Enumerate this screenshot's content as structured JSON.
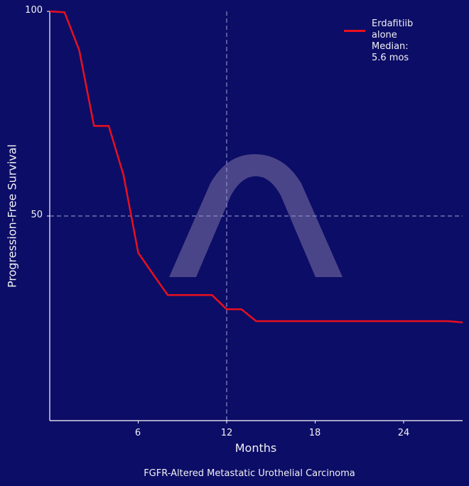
{
  "chart_data": {
    "type": "line",
    "title": "",
    "caption": "FGFR-Altered Metastatic Urothelial Carcinoma",
    "xlabel": "Months",
    "ylabel": "Progression-Free Survival",
    "xlim": [
      0,
      28
    ],
    "ylim": [
      0,
      100
    ],
    "x_ticks": [
      6,
      12,
      18,
      24
    ],
    "y_ticks": [
      50,
      100
    ],
    "grid": false,
    "reference_lines": [
      {
        "orientation": "vertical",
        "value": 12,
        "style": "dashed"
      },
      {
        "orientation": "horizontal",
        "value": 50,
        "style": "dashed"
      }
    ],
    "legend_position": "upper right",
    "series": [
      {
        "name": "Erdafitiib alone",
        "annotation": "Median: 5.6 mos",
        "color": "#e8101e",
        "x": [
          0,
          1,
          2,
          3,
          4,
          5,
          6,
          7,
          8,
          11,
          12,
          13,
          14,
          27,
          28
        ],
        "values": [
          100,
          99.8,
          90.5,
          72,
          72,
          60,
          41,
          35.8,
          30.7,
          30.7,
          27.2,
          27.2,
          24.3,
          24.3,
          24.0
        ]
      }
    ]
  },
  "legend": {
    "line1": "Erdafitiib alone",
    "line2": "Median: 5.6 mos"
  },
  "axes": {
    "y_tick_labels": [
      "100",
      "50"
    ],
    "x_tick_labels": [
      "6",
      "12",
      "18",
      "24"
    ],
    "x_label": "Months",
    "y_label": "Progression-Free Survival"
  },
  "caption": "FGFR-Altered Metastatic Urothelial Carcinoma",
  "colors": {
    "background": "#0c0d66",
    "series": "#e8101e",
    "axis": "#ffffff",
    "reference_line": "#8c8cc8",
    "watermark": "#56508f"
  }
}
